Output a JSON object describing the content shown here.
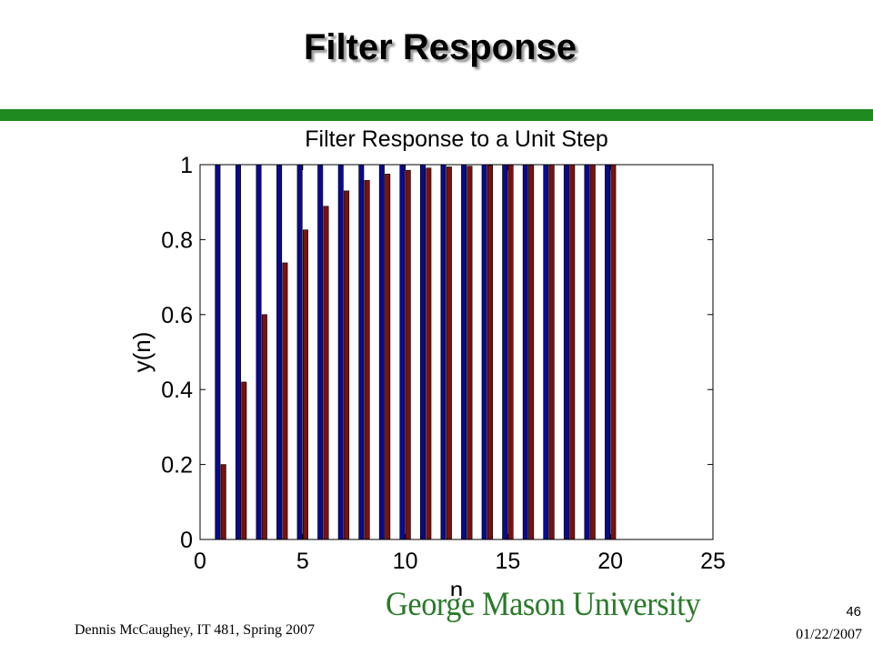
{
  "slide": {
    "title": "Filter Response",
    "logo_text": "George Mason University",
    "footer_left": "Dennis McCaughey, IT 481, Spring 2007",
    "slide_number": "46",
    "date": "01/22/2007",
    "rule_color": "#1f8a1f"
  },
  "chart_data": {
    "type": "bar",
    "title": "Filter Response to a Unit Step",
    "xlabel": "n",
    "ylabel": "y(n)",
    "xlim": [
      0,
      25
    ],
    "ylim": [
      0,
      1
    ],
    "xticks": [
      0,
      5,
      10,
      15,
      20,
      25
    ],
    "yticks": [
      0,
      0.2,
      0.4,
      0.6,
      0.8,
      1
    ],
    "ytick_labels": [
      "0",
      "0.2",
      "0.4",
      "0.6",
      "0.8",
      "1"
    ],
    "grid": false,
    "x": [
      1,
      2,
      3,
      4,
      5,
      6,
      7,
      8,
      9,
      10,
      11,
      12,
      13,
      14,
      15,
      16,
      17,
      18,
      19,
      20
    ],
    "series": [
      {
        "color": "#0a0a8c",
        "values": [
          1,
          1,
          1,
          1,
          1,
          1,
          1,
          1,
          1,
          1,
          1,
          1,
          1,
          1,
          1,
          1,
          1,
          1,
          1,
          1
        ]
      },
      {
        "color": "#7a1010",
        "values": [
          0.2,
          0.42,
          0.6,
          0.738,
          0.826,
          0.889,
          0.93,
          0.958,
          0.975,
          0.985,
          0.991,
          0.994,
          0.996,
          0.998,
          0.999,
          0.999,
          1,
          1,
          1,
          1
        ]
      }
    ]
  }
}
